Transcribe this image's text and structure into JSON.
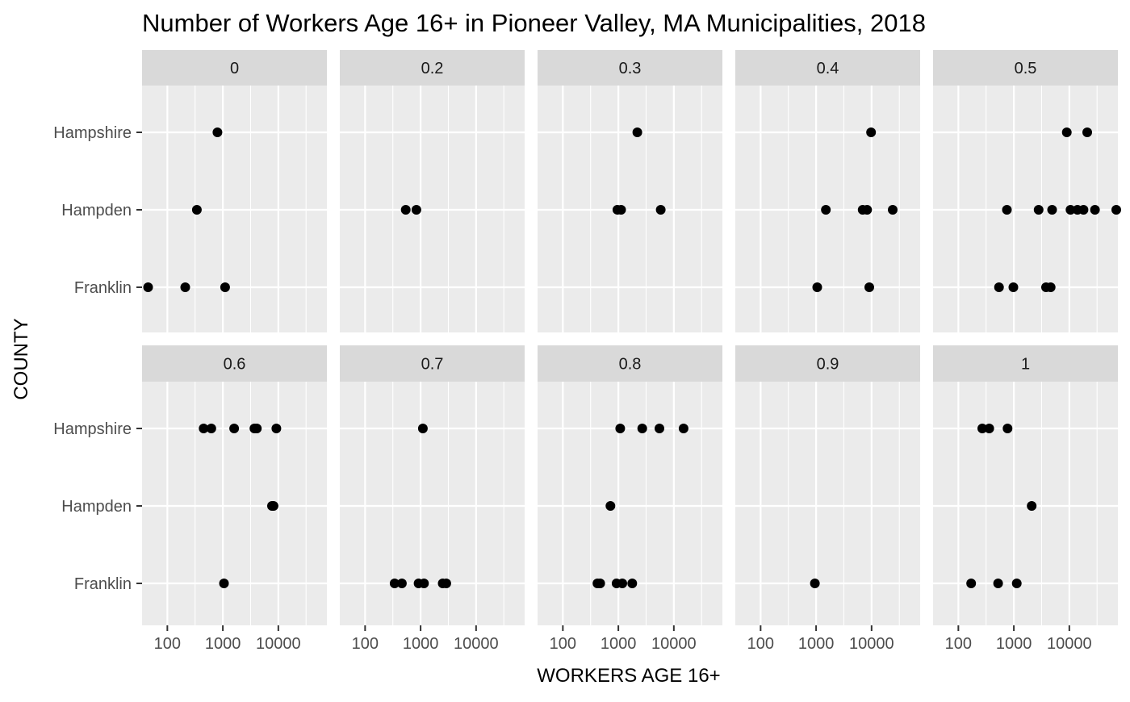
{
  "chart_data": {
    "type": "scatter",
    "title": "Number of Workers Age 16+ in Pioneer Valley, MA Municipalities, 2018",
    "xlabel": "WORKERS AGE 16+",
    "ylabel": "COUNTY",
    "x_scale": "log10",
    "xlim": [
      35,
      75000
    ],
    "x_ticks": [
      100,
      1000,
      10000
    ],
    "x_tick_labels": [
      "100",
      "1000",
      "10000"
    ],
    "categories": [
      "Franklin",
      "Hampden",
      "Hampshire"
    ],
    "grid": true,
    "panels": [
      {
        "label": "0",
        "points": [
          {
            "county": "Hampshire",
            "x": 800
          },
          {
            "county": "Hampden",
            "x": 340
          },
          {
            "county": "Franklin",
            "x": 45
          },
          {
            "county": "Franklin",
            "x": 210
          },
          {
            "county": "Franklin",
            "x": 1100
          }
        ]
      },
      {
        "label": "0.2",
        "points": [
          {
            "county": "Hampden",
            "x": 540
          },
          {
            "county": "Hampden",
            "x": 840
          }
        ]
      },
      {
        "label": "0.3",
        "points": [
          {
            "county": "Hampshire",
            "x": 2200
          },
          {
            "county": "Hampden",
            "x": 960
          },
          {
            "county": "Hampden",
            "x": 1120
          },
          {
            "county": "Hampden",
            "x": 5800
          }
        ]
      },
      {
        "label": "0.4",
        "points": [
          {
            "county": "Hampshire",
            "x": 9800
          },
          {
            "county": "Hampden",
            "x": 1500
          },
          {
            "county": "Hampden",
            "x": 6900
          },
          {
            "county": "Hampden",
            "x": 8300
          },
          {
            "county": "Hampden",
            "x": 24000
          },
          {
            "county": "Franklin",
            "x": 1050
          },
          {
            "county": "Franklin",
            "x": 9100
          }
        ]
      },
      {
        "label": "0.5",
        "points": [
          {
            "county": "Hampshire",
            "x": 9000
          },
          {
            "county": "Hampshire",
            "x": 21000
          },
          {
            "county": "Hampden",
            "x": 750
          },
          {
            "county": "Hampden",
            "x": 2800
          },
          {
            "county": "Hampden",
            "x": 4900
          },
          {
            "county": "Hampden",
            "x": 10500
          },
          {
            "county": "Hampden",
            "x": 14000
          },
          {
            "county": "Hampden",
            "x": 18000
          },
          {
            "county": "Hampden",
            "x": 29000
          },
          {
            "county": "Hampden",
            "x": 72000
          },
          {
            "county": "Franklin",
            "x": 540
          },
          {
            "county": "Franklin",
            "x": 980
          },
          {
            "county": "Franklin",
            "x": 3800
          },
          {
            "county": "Franklin",
            "x": 4600
          }
        ]
      },
      {
        "label": "0.6",
        "points": [
          {
            "county": "Hampshire",
            "x": 450
          },
          {
            "county": "Hampshire",
            "x": 620
          },
          {
            "county": "Hampshire",
            "x": 1600
          },
          {
            "county": "Hampshire",
            "x": 3700
          },
          {
            "county": "Hampshire",
            "x": 4100
          },
          {
            "county": "Hampshire",
            "x": 9200
          },
          {
            "county": "Hampden",
            "x": 7700
          },
          {
            "county": "Hampden",
            "x": 8200
          },
          {
            "county": "Franklin",
            "x": 1050
          }
        ]
      },
      {
        "label": "0.7",
        "points": [
          {
            "county": "Hampshire",
            "x": 1100
          },
          {
            "county": "Franklin",
            "x": 340
          },
          {
            "county": "Franklin",
            "x": 460
          },
          {
            "county": "Franklin",
            "x": 920
          },
          {
            "county": "Franklin",
            "x": 1150
          },
          {
            "county": "Franklin",
            "x": 2500
          },
          {
            "county": "Franklin",
            "x": 2900
          }
        ]
      },
      {
        "label": "0.8",
        "points": [
          {
            "county": "Hampshire",
            "x": 1080
          },
          {
            "county": "Hampshire",
            "x": 2700
          },
          {
            "county": "Hampshire",
            "x": 5500
          },
          {
            "county": "Hampshire",
            "x": 15000
          },
          {
            "county": "Hampden",
            "x": 720
          },
          {
            "county": "Franklin",
            "x": 420
          },
          {
            "county": "Franklin",
            "x": 470
          },
          {
            "county": "Franklin",
            "x": 930
          },
          {
            "county": "Franklin",
            "x": 1180
          },
          {
            "county": "Franklin",
            "x": 1780
          }
        ]
      },
      {
        "label": "0.9",
        "points": [
          {
            "county": "Franklin",
            "x": 950
          }
        ]
      },
      {
        "label": "1",
        "points": [
          {
            "county": "Hampshire",
            "x": 270
          },
          {
            "county": "Hampshire",
            "x": 360
          },
          {
            "county": "Hampshire",
            "x": 770
          },
          {
            "county": "Hampden",
            "x": 2100
          },
          {
            "county": "Franklin",
            "x": 170
          },
          {
            "county": "Franklin",
            "x": 520
          },
          {
            "county": "Franklin",
            "x": 1130
          }
        ]
      }
    ]
  }
}
